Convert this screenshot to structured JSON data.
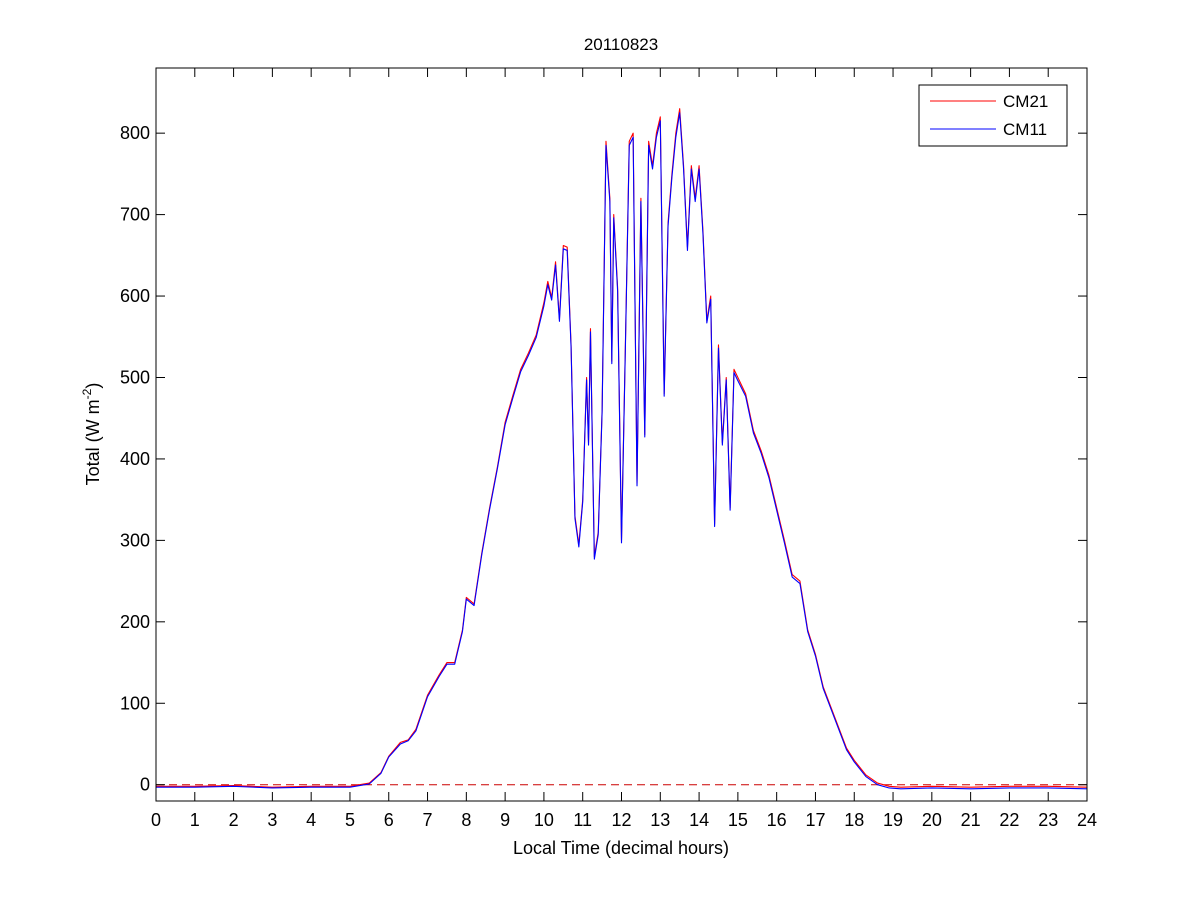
{
  "chart_data": {
    "type": "line",
    "title": "20110823",
    "xlabel": "Local Time (decimal hours)",
    "ylabel": {
      "prefix": "Total (W m",
      "superscript": "-2",
      "suffix": ")"
    },
    "xlim": [
      0,
      24
    ],
    "ylim": [
      -20,
      880
    ],
    "xticks": [
      0,
      1,
      2,
      3,
      4,
      5,
      6,
      7,
      8,
      9,
      10,
      11,
      12,
      13,
      14,
      15,
      16,
      17,
      18,
      19,
      20,
      21,
      22,
      23,
      24
    ],
    "yticks": [
      0,
      100,
      200,
      300,
      400,
      500,
      600,
      700,
      800
    ],
    "grid": false,
    "legend_position": "top-right",
    "reference_line": {
      "y": 0,
      "style": "dashed",
      "color": "#cc0000"
    },
    "series": [
      {
        "name": "CM21",
        "color": "#ff0000",
        "points": [
          [
            0,
            -2
          ],
          [
            1,
            -2
          ],
          [
            2,
            -1
          ],
          [
            3,
            -3
          ],
          [
            4,
            -2
          ],
          [
            5,
            -2
          ],
          [
            5.5,
            2
          ],
          [
            5.8,
            15
          ],
          [
            6.0,
            35
          ],
          [
            6.3,
            52
          ],
          [
            6.5,
            55
          ],
          [
            6.7,
            68
          ],
          [
            7.0,
            110
          ],
          [
            7.3,
            135
          ],
          [
            7.5,
            150
          ],
          [
            7.7,
            150
          ],
          [
            7.9,
            190
          ],
          [
            8.0,
            230
          ],
          [
            8.2,
            222
          ],
          [
            8.4,
            285
          ],
          [
            8.6,
            340
          ],
          [
            8.8,
            390
          ],
          [
            9.0,
            445
          ],
          [
            9.2,
            478
          ],
          [
            9.4,
            510
          ],
          [
            9.6,
            530
          ],
          [
            9.8,
            552
          ],
          [
            10.0,
            592
          ],
          [
            10.1,
            618
          ],
          [
            10.2,
            598
          ],
          [
            10.3,
            642
          ],
          [
            10.4,
            572
          ],
          [
            10.5,
            662
          ],
          [
            10.6,
            660
          ],
          [
            10.7,
            540
          ],
          [
            10.8,
            330
          ],
          [
            10.9,
            295
          ],
          [
            11.0,
            350
          ],
          [
            11.1,
            500
          ],
          [
            11.15,
            420
          ],
          [
            11.2,
            560
          ],
          [
            11.3,
            280
          ],
          [
            11.4,
            310
          ],
          [
            11.5,
            460
          ],
          [
            11.6,
            790
          ],
          [
            11.7,
            720
          ],
          [
            11.75,
            520
          ],
          [
            11.8,
            700
          ],
          [
            11.9,
            610
          ],
          [
            12.0,
            300
          ],
          [
            12.1,
            540
          ],
          [
            12.2,
            790
          ],
          [
            12.3,
            800
          ],
          [
            12.4,
            370
          ],
          [
            12.5,
            720
          ],
          [
            12.6,
            430
          ],
          [
            12.7,
            790
          ],
          [
            12.8,
            760
          ],
          [
            12.9,
            800
          ],
          [
            13.0,
            820
          ],
          [
            13.1,
            480
          ],
          [
            13.2,
            690
          ],
          [
            13.3,
            750
          ],
          [
            13.4,
            800
          ],
          [
            13.5,
            830
          ],
          [
            13.6,
            760
          ],
          [
            13.7,
            660
          ],
          [
            13.8,
            760
          ],
          [
            13.9,
            720
          ],
          [
            14.0,
            760
          ],
          [
            14.1,
            680
          ],
          [
            14.2,
            570
          ],
          [
            14.3,
            600
          ],
          [
            14.4,
            320
          ],
          [
            14.5,
            540
          ],
          [
            14.6,
            420
          ],
          [
            14.7,
            500
          ],
          [
            14.8,
            340
          ],
          [
            14.9,
            510
          ],
          [
            15.0,
            500
          ],
          [
            15.2,
            480
          ],
          [
            15.4,
            435
          ],
          [
            15.6,
            410
          ],
          [
            15.8,
            380
          ],
          [
            16.0,
            340
          ],
          [
            16.2,
            300
          ],
          [
            16.4,
            258
          ],
          [
            16.6,
            250
          ],
          [
            16.8,
            190
          ],
          [
            17.0,
            160
          ],
          [
            17.2,
            120
          ],
          [
            17.4,
            95
          ],
          [
            17.6,
            70
          ],
          [
            17.8,
            45
          ],
          [
            18.0,
            30
          ],
          [
            18.3,
            12
          ],
          [
            18.6,
            2
          ],
          [
            18.9,
            -2
          ],
          [
            19.2,
            -3
          ],
          [
            20,
            -2
          ],
          [
            21,
            -3
          ],
          [
            22,
            -2
          ],
          [
            23,
            -2
          ],
          [
            24,
            -3
          ]
        ]
      },
      {
        "name": "CM11",
        "color": "#0000ff",
        "points": [
          [
            0,
            -3
          ],
          [
            1,
            -3
          ],
          [
            2,
            -2
          ],
          [
            3,
            -4
          ],
          [
            4,
            -3
          ],
          [
            5,
            -3
          ],
          [
            5.5,
            1
          ],
          [
            5.8,
            14
          ],
          [
            6.0,
            34
          ],
          [
            6.3,
            50
          ],
          [
            6.5,
            54
          ],
          [
            6.7,
            66
          ],
          [
            7.0,
            108
          ],
          [
            7.3,
            133
          ],
          [
            7.5,
            148
          ],
          [
            7.7,
            148
          ],
          [
            7.9,
            188
          ],
          [
            8.0,
            228
          ],
          [
            8.2,
            220
          ],
          [
            8.4,
            283
          ],
          [
            8.6,
            338
          ],
          [
            8.8,
            388
          ],
          [
            9.0,
            442
          ],
          [
            9.2,
            475
          ],
          [
            9.4,
            507
          ],
          [
            9.6,
            527
          ],
          [
            9.8,
            549
          ],
          [
            10.0,
            588
          ],
          [
            10.1,
            614
          ],
          [
            10.2,
            595
          ],
          [
            10.3,
            638
          ],
          [
            10.4,
            569
          ],
          [
            10.5,
            658
          ],
          [
            10.6,
            656
          ],
          [
            10.7,
            537
          ],
          [
            10.8,
            327
          ],
          [
            10.9,
            292
          ],
          [
            11.0,
            347
          ],
          [
            11.1,
            497
          ],
          [
            11.15,
            417
          ],
          [
            11.2,
            556
          ],
          [
            11.3,
            277
          ],
          [
            11.4,
            307
          ],
          [
            11.5,
            457
          ],
          [
            11.6,
            785
          ],
          [
            11.7,
            716
          ],
          [
            11.75,
            517
          ],
          [
            11.8,
            696
          ],
          [
            11.9,
            606
          ],
          [
            12.0,
            297
          ],
          [
            12.1,
            536
          ],
          [
            12.2,
            785
          ],
          [
            12.3,
            795
          ],
          [
            12.4,
            367
          ],
          [
            12.5,
            716
          ],
          [
            12.6,
            427
          ],
          [
            12.7,
            785
          ],
          [
            12.8,
            756
          ],
          [
            12.9,
            795
          ],
          [
            13.0,
            815
          ],
          [
            13.1,
            477
          ],
          [
            13.2,
            686
          ],
          [
            13.3,
            746
          ],
          [
            13.4,
            795
          ],
          [
            13.5,
            825
          ],
          [
            13.6,
            756
          ],
          [
            13.7,
            656
          ],
          [
            13.8,
            756
          ],
          [
            13.9,
            716
          ],
          [
            14.0,
            756
          ],
          [
            14.1,
            676
          ],
          [
            14.2,
            567
          ],
          [
            14.3,
            596
          ],
          [
            14.4,
            317
          ],
          [
            14.5,
            536
          ],
          [
            14.6,
            417
          ],
          [
            14.7,
            497
          ],
          [
            14.8,
            337
          ],
          [
            14.9,
            506
          ],
          [
            15.0,
            496
          ],
          [
            15.2,
            477
          ],
          [
            15.4,
            432
          ],
          [
            15.6,
            407
          ],
          [
            15.8,
            377
          ],
          [
            16.0,
            337
          ],
          [
            16.2,
            297
          ],
          [
            16.4,
            255
          ],
          [
            16.6,
            247
          ],
          [
            16.8,
            188
          ],
          [
            17.0,
            158
          ],
          [
            17.2,
            118
          ],
          [
            17.4,
            93
          ],
          [
            17.6,
            68
          ],
          [
            17.8,
            43
          ],
          [
            18.0,
            28
          ],
          [
            18.3,
            10
          ],
          [
            18.6,
            0
          ],
          [
            18.9,
            -4
          ],
          [
            19.2,
            -5
          ],
          [
            20,
            -4
          ],
          [
            21,
            -5
          ],
          [
            22,
            -4
          ],
          [
            23,
            -4
          ],
          [
            24,
            -5
          ]
        ]
      }
    ]
  }
}
